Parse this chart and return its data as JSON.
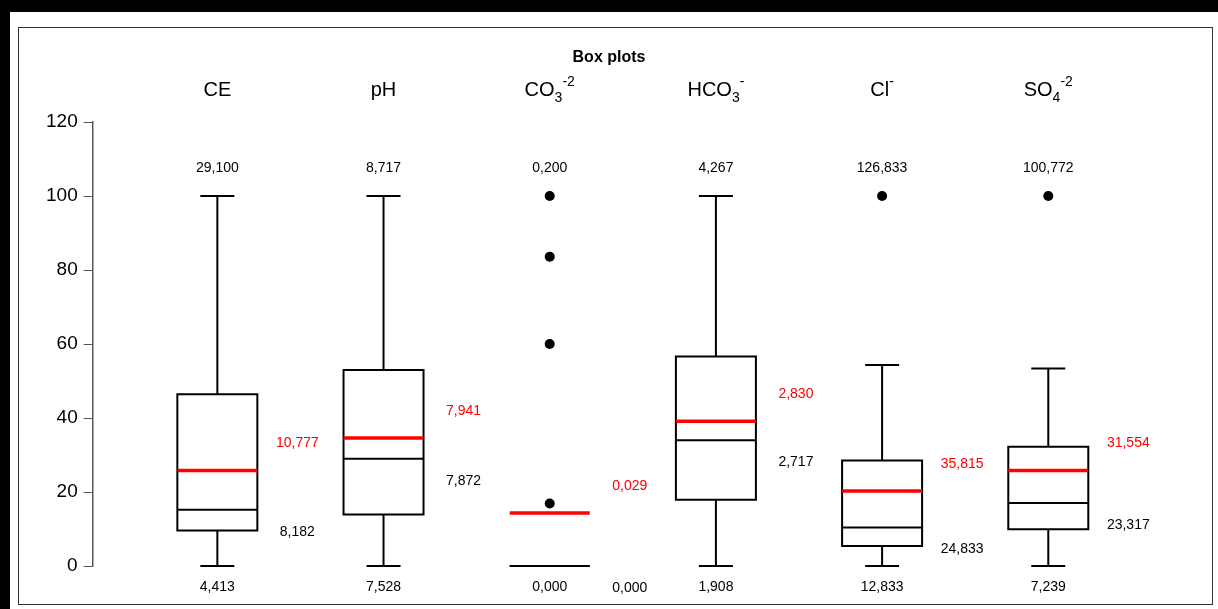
{
  "chart_data": {
    "type": "box",
    "title": "Box plots",
    "categories": [
      "CE",
      "pH",
      "CO$_{3}$$^{-2}$",
      "HCO$_{3}$$^{-}$",
      "Cl$^{-}$",
      "SO$_{4}$$^{-2}$"
    ],
    "series": [
      {
        "color": "#000000",
        "boxes": [
          {
            "low": 0,
            "q1": 9.6,
            "median": 15.2,
            "q3": 46.4,
            "high": 100,
            "mean": 25.8
          },
          {
            "low": 0,
            "q1": 13.9,
            "median": 29.0,
            "q3": 53.0,
            "high": 100,
            "mean": 34.6
          },
          {
            "low": 0,
            "q1": 0,
            "median": 0,
            "q3": 0,
            "high": 0,
            "mean": 14.3,
            "outliers": [
              100,
              83.6,
              60.0,
              16.9
            ]
          },
          {
            "low": 0,
            "q1": 17.9,
            "median": 34.0,
            "q3": 56.6,
            "high": 100,
            "mean": 39.1
          },
          {
            "low": 0,
            "q1": 5.4,
            "median": 10.4,
            "q3": 28.5,
            "high": 54.3,
            "mean": 20.3,
            "outliers": [
              100
            ]
          },
          {
            "low": 0,
            "q1": 9.9,
            "median": 17.0,
            "q3": 32.2,
            "high": 53.4,
            "mean": 25.8,
            "outliers": [
              100
            ]
          }
        ]
      }
    ],
    "ylim": [
      0,
      120
    ],
    "yticks": [
      0,
      20,
      40,
      60,
      80,
      100,
      120
    ],
    "grid": false,
    "legend": false,
    "annotations": [
      "29,100",
      "10,777",
      "8,182",
      "4,413",
      "8,717",
      "7,941",
      "7,872",
      "7,528",
      "0,200",
      "0,029",
      "0,000",
      "0,000",
      "4,267",
      "2,830",
      "2,717",
      "1,908",
      "126,833",
      "35,815",
      "24,833",
      "12,833",
      "100,772",
      "31,554",
      "23,317",
      "7,239"
    ]
  }
}
